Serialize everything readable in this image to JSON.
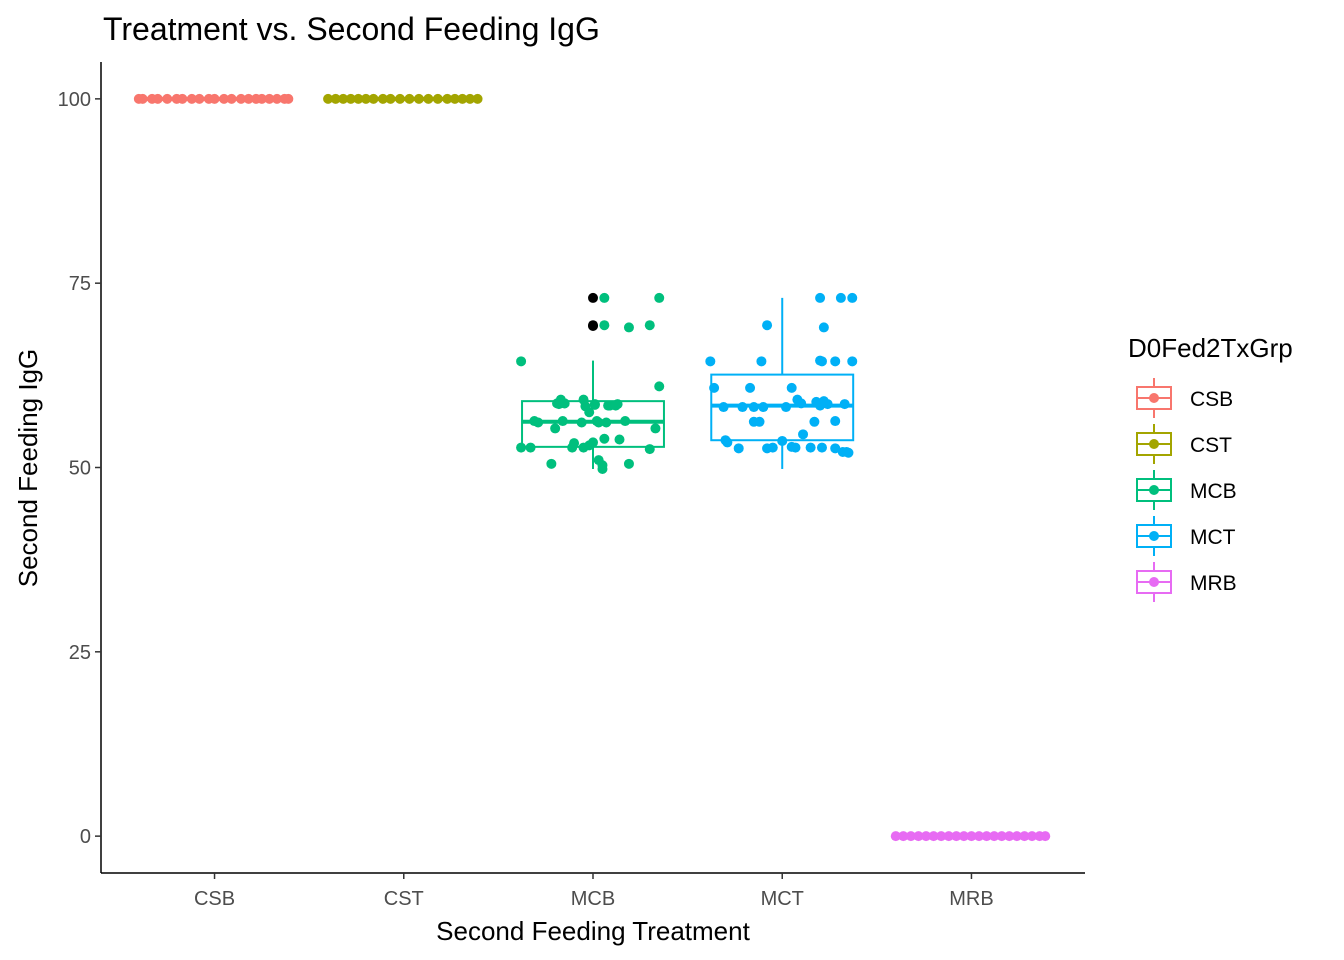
{
  "chart_data": {
    "type": "boxplot_jitter",
    "title": "Treatment vs. Second Feeding IgG",
    "xlabel": "Second Feeding Treatment",
    "ylabel": "Second Feeding IgG",
    "categories": [
      "CSB",
      "CST",
      "MCB",
      "MCT",
      "MRB"
    ],
    "ylim": [
      -5,
      105
    ],
    "yticks": [
      0,
      25,
      50,
      75,
      100
    ],
    "grid": false,
    "legend": {
      "title": "D0Fed2TxGrp",
      "position": "right",
      "entries": [
        "CSB",
        "CST",
        "MCB",
        "MCT",
        "MRB"
      ]
    },
    "colors": {
      "CSB": "#F8766D",
      "CST": "#A3A500",
      "MCB": "#00BF7D",
      "MCT": "#00B0F6",
      "MRB": "#E76BF3",
      "outlier": "#000000"
    },
    "boxes": [
      {
        "group": "CSB",
        "min": 100,
        "q1": 100,
        "median": 100,
        "q3": 100,
        "max": 100,
        "outliers": []
      },
      {
        "group": "CST",
        "min": 100,
        "q1": 100,
        "median": 100,
        "q3": 100,
        "max": 100,
        "outliers": []
      },
      {
        "group": "MCB",
        "min": 49.8,
        "q1": 52.8,
        "median": 56.2,
        "q3": 59.0,
        "max": 64.5,
        "outliers": [
          69.2,
          69.3,
          73.0
        ]
      },
      {
        "group": "MCT",
        "min": 49.8,
        "q1": 53.7,
        "median": 58.4,
        "q3": 62.6,
        "max": 73.0,
        "outliers": []
      },
      {
        "group": "MRB",
        "min": 0,
        "q1": 0,
        "median": 0,
        "q3": 0,
        "max": 0,
        "outliers": []
      }
    ],
    "points": [
      {
        "group": "CSB",
        "x": [
          -0.4,
          -0.38,
          -0.33,
          -0.3,
          -0.25,
          -0.2,
          -0.17,
          -0.12,
          -0.08,
          -0.03,
          0.0,
          0.05,
          0.09,
          0.14,
          0.18,
          0.22,
          0.25,
          0.29,
          0.33,
          0.37,
          0.39
        ],
        "y": [
          100,
          100,
          100,
          100,
          100,
          100,
          100,
          100,
          100,
          100,
          100,
          100,
          100,
          100,
          100,
          100,
          100,
          100,
          100,
          100,
          100
        ]
      },
      {
        "group": "CST",
        "x": [
          -0.4,
          -0.36,
          -0.32,
          -0.28,
          -0.24,
          -0.2,
          -0.16,
          -0.11,
          -0.07,
          -0.02,
          0.03,
          0.08,
          0.13,
          0.18,
          0.23,
          0.27,
          0.31,
          0.35,
          0.39
        ],
        "y": [
          100,
          100,
          100,
          100,
          100,
          100,
          100,
          100,
          100,
          100,
          100,
          100,
          100,
          100,
          100,
          100,
          100,
          100,
          100
        ]
      },
      {
        "group": "MCB",
        "x": [
          -0.19,
          -0.17,
          -0.15,
          -0.04,
          -0.02,
          0.01,
          0.02,
          -0.31,
          -0.16,
          0.17,
          -0.2,
          -0.38,
          -0.11,
          -0.05,
          0.0,
          0.06,
          0.14,
          0.3,
          -0.22,
          0.03,
          0.05,
          0.19,
          0.33,
          -0.33,
          0.05,
          -0.06,
          -0.02,
          0.13,
          0.03,
          0.01,
          0.35,
          -0.18,
          0.09,
          0.07,
          -0.1,
          -0.29,
          0.08,
          -0.15,
          -0.05,
          0.12
        ],
        "y": [
          58.7,
          59.2,
          58.7,
          58.3,
          57.5,
          58.5,
          56.3,
          56.3,
          56.3,
          56.3,
          55.3,
          52.7,
          52.7,
          52.7,
          53.4,
          53.9,
          53.8,
          52.5,
          50.5,
          51.0,
          49.8,
          50.5,
          55.3,
          52.7,
          50.3,
          56.1,
          53.0,
          58.6,
          56.1,
          58.6,
          61.0,
          58.6,
          58.4,
          56.1,
          53.3,
          56.1,
          58.4,
          58.7,
          59.2,
          58.4
        ]
      },
      {
        "group": "MCT",
        "x": [
          -0.36,
          -0.31,
          -0.15,
          0.02,
          0.1,
          0.2,
          0.33,
          -0.12,
          0.05,
          -0.17,
          0.08,
          0.28,
          -0.3,
          0.07,
          0.15,
          0.21,
          -0.05,
          0.28,
          0.32,
          0.34,
          -0.23,
          -0.29,
          -0.15,
          0.0,
          0.11,
          -0.08,
          -0.21,
          0.2,
          0.17,
          0.24,
          0.35,
          0.18,
          0.22,
          -0.1,
          0.05
        ],
        "y": [
          60.8,
          58.2,
          58.2,
          58.2,
          58.7,
          58.6,
          58.6,
          56.2,
          60.8,
          60.8,
          59.2,
          56.3,
          53.7,
          52.7,
          52.7,
          52.7,
          52.7,
          52.6,
          52.1,
          52.1,
          52.6,
          53.4,
          56.2,
          53.6,
          54.5,
          52.6,
          58.2,
          58.4,
          56.2,
          58.6,
          52.0,
          58.9,
          59.0,
          58.2,
          52.8
        ]
      },
      {
        "group": "MRB",
        "x": [
          -0.4,
          -0.36,
          -0.32,
          -0.28,
          -0.24,
          -0.2,
          -0.16,
          -0.12,
          -0.08,
          -0.04,
          0.0,
          0.04,
          0.08,
          0.12,
          0.16,
          0.2,
          0.24,
          0.28,
          0.32,
          0.36,
          0.39
        ],
        "y": [
          0,
          0,
          0,
          0,
          0,
          0,
          0,
          0,
          0,
          0,
          0,
          0,
          0,
          0,
          0,
          0,
          0,
          0,
          0,
          0,
          0
        ]
      },
      {
        "group": "MCB",
        "x": [
          -0.38,
          0.19,
          0.06,
          0.06,
          0.35,
          0.3
        ],
        "y": [
          64.4,
          69.0,
          69.3,
          73.0,
          73.0,
          69.3
        ]
      },
      {
        "group": "MCT",
        "x": [
          -0.38,
          -0.08,
          -0.11,
          0.21,
          0.2,
          0.22,
          0.37,
          0.37,
          0.2,
          0.31,
          0.28
        ],
        "y": [
          64.4,
          69.3,
          64.4,
          64.4,
          64.5,
          69.0,
          64.4,
          73.0,
          73.0,
          73.0,
          64.4
        ]
      }
    ]
  }
}
